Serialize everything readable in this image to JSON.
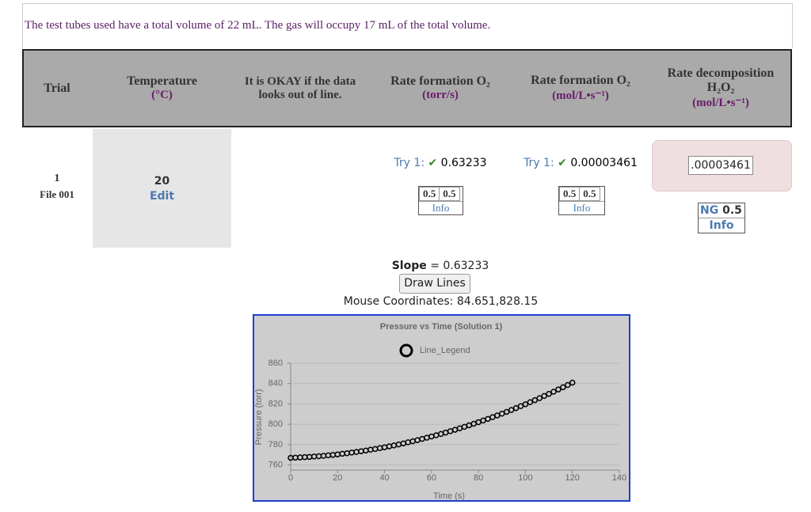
{
  "note": "The test tubes used have a total volume of 22 mL. The gas will occupy 17 mL of the total volume.",
  "table": {
    "headers": [
      {
        "title": "Trial"
      },
      {
        "title": "Temperature",
        "unit": "(°C)"
      },
      {
        "title": "It is OKAY if the data looks out of line."
      },
      {
        "title": "Rate formation O₂",
        "unit": "(torr/s)"
      },
      {
        "title": "Rate formation O₂",
        "unit": "(mol/L•s⁻¹)"
      },
      {
        "title": "Rate decomposition H₂O₂",
        "unit": "(mol/L•s⁻¹)"
      }
    ],
    "row": {
      "trial": "1",
      "file": "File 001",
      "temperature": "20",
      "edit": "Edit",
      "torr": {
        "try": "Try 1:",
        "check": "✔",
        "value": "0.63233",
        "scores": [
          "0.5",
          "0.5"
        ],
        "info": "Info"
      },
      "mol": {
        "try": "Try 1:",
        "check": "✔",
        "value": "0.00003461",
        "scores": [
          "0.5",
          "0.5"
        ],
        "info": "Info"
      },
      "decomp": {
        "input": ".00003461",
        "grade": "NG",
        "score": "0.5",
        "info": "Info"
      }
    }
  },
  "slope": {
    "label": "Slope",
    "equation": "= 0.63233"
  },
  "button": "Draw Lines",
  "mouse": "Mouse Coordinates: 84.651,828.15",
  "chart_data": {
    "type": "scatter",
    "title": "Pressure vs Time (Solution 1)",
    "x_label": "Time (s)",
    "y_label": "Pressure (torr)",
    "series": [
      {
        "name": "Line_Legend",
        "color": "#000000",
        "x": [
          0,
          2,
          4,
          6,
          8,
          10,
          12,
          14,
          16,
          18,
          20,
          22,
          24,
          26,
          28,
          30,
          32,
          34,
          36,
          38,
          40,
          42,
          44,
          46,
          48,
          50,
          52,
          54,
          56,
          58,
          60,
          62,
          64,
          66,
          68,
          70,
          72,
          74,
          76,
          78,
          80,
          82,
          84,
          86,
          88,
          90,
          92,
          94,
          96,
          98,
          100,
          102,
          104,
          106,
          108,
          110,
          112,
          114,
          116,
          118,
          120
        ],
        "values": [
          767.0,
          767.2,
          767.4,
          767.7,
          767.9,
          768.3,
          768.6,
          769.0,
          769.5,
          769.9,
          770.4,
          771.0,
          771.5,
          772.2,
          772.8,
          773.5,
          774.2,
          775.0,
          775.7,
          776.6,
          777.4,
          778.3,
          779.2,
          780.2,
          781.2,
          782.3,
          783.3,
          784.4,
          785.6,
          786.8,
          788.0,
          789.2,
          790.5,
          791.8,
          793.2,
          794.6,
          796.0,
          797.5,
          799.0,
          800.5,
          802.1,
          803.7,
          805.3,
          807.0,
          808.7,
          810.4,
          812.2,
          814.0,
          815.9,
          817.8,
          819.7,
          821.7,
          823.7,
          825.7,
          827.8,
          829.9,
          832.0,
          834.2,
          836.4,
          838.6,
          840.9
        ]
      }
    ],
    "xlim": [
      0,
      140
    ],
    "xticks": [
      0,
      20,
      40,
      60,
      80,
      100,
      120,
      140
    ],
    "ylim": [
      755,
      860
    ],
    "yticks": [
      760,
      780,
      800,
      820,
      840,
      860
    ],
    "grid": true
  }
}
